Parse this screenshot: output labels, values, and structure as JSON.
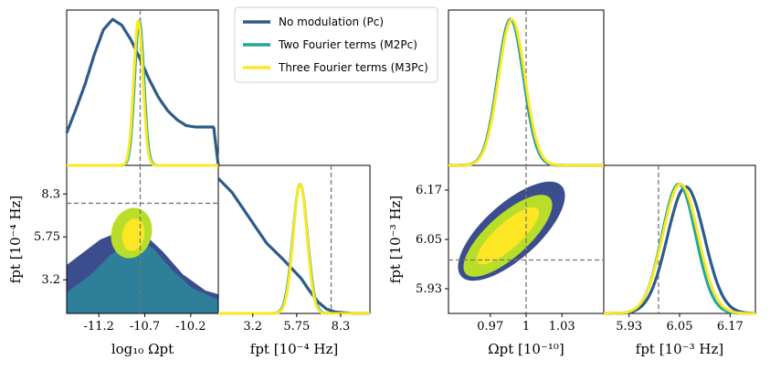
{
  "colors": {
    "pc": "#2e5b88",
    "m2pc": "#23a69a",
    "m3pc": "#fde725",
    "contour_outer": "#3b4d8c",
    "contour_mid": "#2e7f9a",
    "contour_m_outer": "#b8de29",
    "dashed": "#888888"
  },
  "legend": [
    {
      "key": "pc",
      "label": "No modulation (Pc)"
    },
    {
      "key": "m2pc",
      "label": "Two Fourier terms (M2Pc)"
    },
    {
      "key": "m3pc",
      "label": "Three Fourier terms (M3Pc)"
    }
  ],
  "chart_data": [
    {
      "id": "left-corner",
      "type": "corner",
      "parameters": [
        "log10 Ωpt",
        "f_pt"
      ],
      "axis_labels": {
        "x_bottom_left": "log₁₀ Ωpt",
        "x_bottom_right": "fpt  [10⁻⁴ Hz]",
        "y_left": "fpt  [10⁻⁴ Hz]"
      },
      "x_range_omega": [
        -11.55,
        -9.9
      ],
      "x_range_f": [
        1.2,
        10.0
      ],
      "y_range_f": [
        1.2,
        10.0
      ],
      "x_ticks_omega": [
        "-11.2",
        "-10.7",
        "-10.2"
      ],
      "x_ticks_omega_values": [
        -11.2,
        -10.7,
        -10.2
      ],
      "ticks_f": [
        "3.2",
        "5.75",
        "8.3"
      ],
      "ticks_f_values": [
        3.2,
        5.75,
        8.3
      ],
      "truth": {
        "omega": -10.75,
        "f": 7.75
      },
      "marginal_omega": [
        {
          "series": "pc",
          "x": [
            -11.55,
            -11.45,
            -11.35,
            -11.25,
            -11.15,
            -11.05,
            -10.95,
            -10.85,
            -10.75,
            -10.65,
            -10.55,
            -10.45,
            -10.35,
            -10.25,
            -10.15,
            -10.05,
            -9.95,
            -9.9
          ],
          "y": [
            0.22,
            0.38,
            0.55,
            0.75,
            0.92,
            0.99,
            0.95,
            0.85,
            0.72,
            0.58,
            0.46,
            0.37,
            0.31,
            0.27,
            0.26,
            0.26,
            0.26,
            0.0
          ]
        },
        {
          "series": "m2pc",
          "mean": -10.76,
          "sd": 0.05,
          "peak": 0.98
        },
        {
          "series": "m3pc",
          "mean": -10.77,
          "sd": 0.05,
          "peak": 0.98
        }
      ],
      "marginal_f": [
        {
          "series": "pc",
          "x": [
            1.2,
            2.0,
            3.0,
            4.0,
            5.0,
            6.0,
            6.5,
            7.0,
            7.5,
            8.0,
            9.0,
            10.0
          ],
          "y": [
            0.96,
            0.86,
            0.68,
            0.5,
            0.38,
            0.25,
            0.16,
            0.08,
            0.03,
            0.01,
            0.0,
            0.0
          ]
        },
        {
          "series": "m2pc",
          "mean": 5.95,
          "sd": 0.42,
          "peak": 0.92
        },
        {
          "series": "m3pc",
          "mean": 5.95,
          "sd": 0.4,
          "peak": 0.92
        }
      ]
    },
    {
      "id": "right-corner",
      "type": "corner",
      "parameters": [
        "Ωpt",
        "f_pt"
      ],
      "axis_labels": {
        "x_bottom_left": "Ωpt  [10⁻¹⁰]",
        "x_bottom_right": "fpt  [10⁻³ Hz]",
        "y_left": "fpt  [10⁻³ Hz]"
      },
      "x_range_omega": [
        0.935,
        1.065
      ],
      "x_range_f": [
        5.87,
        6.23
      ],
      "y_range_f": [
        5.87,
        6.23
      ],
      "x_ticks_omega": [
        "0.97",
        "1",
        "1.03"
      ],
      "x_ticks_omega_values": [
        0.97,
        1.0,
        1.03
      ],
      "ticks_f": [
        "5.93",
        "6.05",
        "6.17"
      ],
      "ticks_f_values": [
        5.93,
        6.05,
        6.17
      ],
      "truth": {
        "omega": 1.0,
        "f": 6.0
      },
      "marginal_omega": [
        {
          "series": "pc",
          "mean": 0.987,
          "sd": 0.0108,
          "peak": 0.99
        },
        {
          "series": "m2pc",
          "mean": 0.987,
          "sd": 0.0108,
          "peak": 0.99
        },
        {
          "series": "m3pc",
          "mean": 0.988,
          "sd": 0.011,
          "peak": 0.99
        }
      ],
      "marginal_f": [
        {
          "series": "pc",
          "mean": 6.065,
          "sd": 0.044,
          "peak": 0.9
        },
        {
          "series": "m2pc",
          "mean": 6.048,
          "sd": 0.04,
          "peak": 0.92
        },
        {
          "series": "m3pc",
          "mean": 6.052,
          "sd": 0.042,
          "peak": 0.92
        }
      ]
    }
  ]
}
